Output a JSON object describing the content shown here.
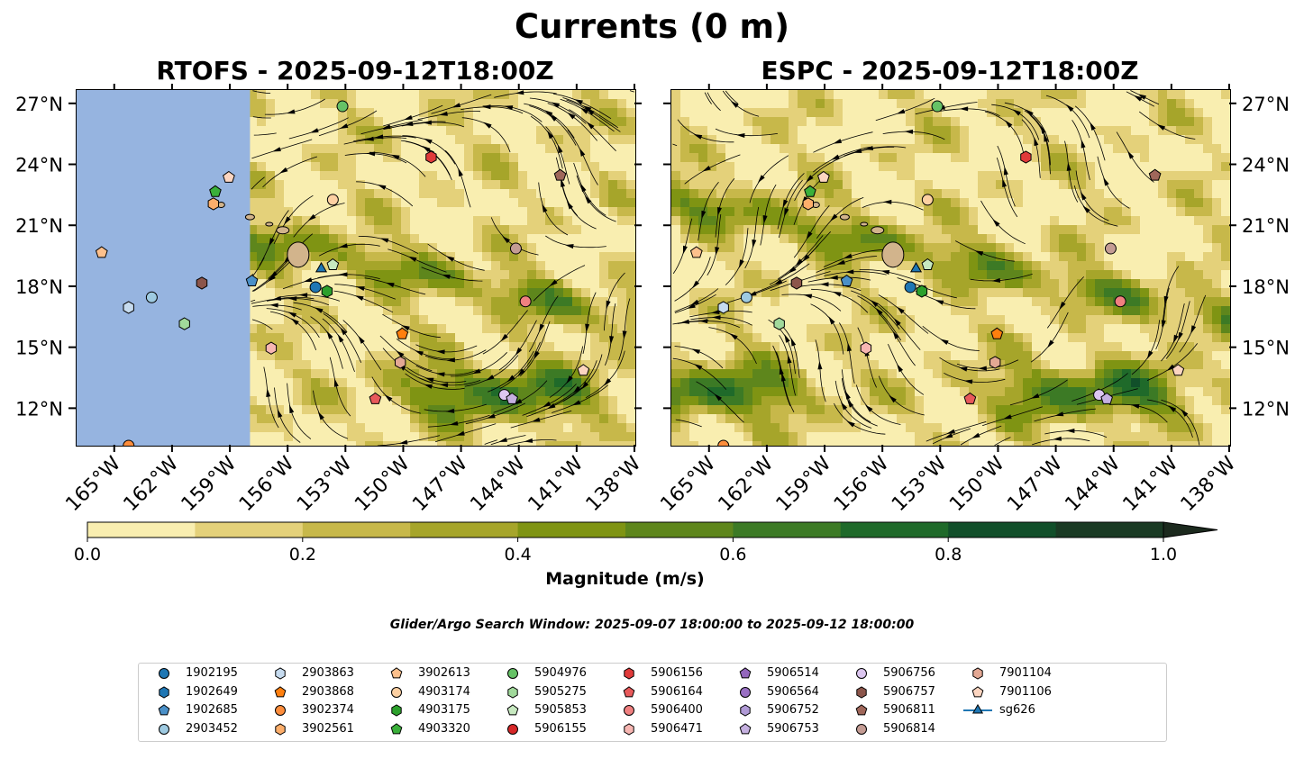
{
  "title": "Currents (0 m)",
  "panels": [
    {
      "id": "rtofs",
      "title": "RTOFS - 2025-09-12T18:00Z"
    },
    {
      "id": "espc",
      "title": "ESPC - 2025-09-12T18:00Z"
    }
  ],
  "chart_data": {
    "type": "heatmap",
    "x_ticks": [
      "165°W",
      "162°W",
      "159°W",
      "156°W",
      "153°W",
      "150°W",
      "147°W",
      "144°W",
      "141°W",
      "138°W"
    ],
    "y_ticks": [
      "27°N",
      "24°N",
      "21°N",
      "18°N",
      "15°N",
      "12°N"
    ],
    "xlim": [
      -167,
      -138
    ],
    "ylim": [
      10.2,
      27.7
    ],
    "colorbar": {
      "label": "Magnitude (m/s)",
      "ticks": [
        "0.0",
        "0.2",
        "0.4",
        "0.6",
        "0.8",
        "1.0"
      ],
      "range": [
        0,
        1.0
      ],
      "levels": [
        0,
        0.1,
        0.2,
        0.3,
        0.4,
        0.5,
        0.6,
        0.7,
        0.8,
        0.9,
        1.0
      ],
      "colors": [
        "#f9eeb0",
        "#e4d17a",
        "#c7b84a",
        "#a6a52a",
        "#7f9413",
        "#5e861c",
        "#3c7a25",
        "#1f6a2a",
        "#114f2a",
        "#1a3a24",
        "#1c2a1e"
      ]
    },
    "rtofs_no_data_west_of": -158,
    "colors": {
      "land": "#d2b48c",
      "no_data": "#96b4e0"
    }
  },
  "search_window": "Glider/Argo Search Window: 2025-09-07 18:00:00 to 2025-09-12 18:00:00",
  "legend": [
    {
      "id": "1902195",
      "shape": "circle",
      "color": "#1f77b4"
    },
    {
      "id": "1902649",
      "shape": "hexagon",
      "color": "#1f77b4"
    },
    {
      "id": "1902685",
      "shape": "pentagon",
      "color": "#4a90c8"
    },
    {
      "id": "2903452",
      "shape": "circle",
      "color": "#9ecae1"
    },
    {
      "id": "2903863",
      "shape": "hexagon",
      "color": "#c6dbef"
    },
    {
      "id": "2903868",
      "shape": "pentagon",
      "color": "#ff7f0e"
    },
    {
      "id": "3902374",
      "shape": "circle",
      "color": "#fd8d3c"
    },
    {
      "id": "3902561",
      "shape": "hexagon",
      "color": "#fdae6b"
    },
    {
      "id": "3902613",
      "shape": "pentagon",
      "color": "#fdc08c"
    },
    {
      "id": "4903174",
      "shape": "circle",
      "color": "#fdd0a2"
    },
    {
      "id": "4903175",
      "shape": "hexagon",
      "color": "#2ca02c"
    },
    {
      "id": "4903320",
      "shape": "pentagon",
      "color": "#3ab03a"
    },
    {
      "id": "5904976",
      "shape": "circle",
      "color": "#66c266"
    },
    {
      "id": "5905275",
      "shape": "hexagon",
      "color": "#a1d99b"
    },
    {
      "id": "5905853",
      "shape": "pentagon",
      "color": "#c7e9c0"
    },
    {
      "id": "5906155",
      "shape": "circle",
      "color": "#d62728"
    },
    {
      "id": "5906156",
      "shape": "hexagon",
      "color": "#e03a3a"
    },
    {
      "id": "5906164",
      "shape": "pentagon",
      "color": "#e8595a"
    },
    {
      "id": "5906400",
      "shape": "circle",
      "color": "#f08080"
    },
    {
      "id": "5906471",
      "shape": "hexagon",
      "color": "#f7b6b2"
    },
    {
      "id": "5906514",
      "shape": "pentagon",
      "color": "#9467bd"
    },
    {
      "id": "5906564",
      "shape": "circle",
      "color": "#9a70c4"
    },
    {
      "id": "5906752",
      "shape": "hexagon",
      "color": "#b09ad6"
    },
    {
      "id": "5906753",
      "shape": "pentagon",
      "color": "#c5b0e0"
    },
    {
      "id": "5906756",
      "shape": "circle",
      "color": "#dcc6f0"
    },
    {
      "id": "5906757",
      "shape": "hexagon",
      "color": "#8c564b"
    },
    {
      "id": "5906811",
      "shape": "pentagon",
      "color": "#a0675a"
    },
    {
      "id": "5906814",
      "shape": "circle",
      "color": "#c49c94"
    },
    {
      "id": "7901104",
      "shape": "hexagon",
      "color": "#e3a894"
    },
    {
      "id": "7901106",
      "shape": "pentagon",
      "color": "#fcd5c0"
    },
    {
      "id": "sg626",
      "shape": "triangle",
      "color": "#1f77b4"
    }
  ],
  "markers": [
    {
      "id": "5904976",
      "lon": -153.2,
      "lat": 26.9
    },
    {
      "id": "5906156",
      "lon": -148.6,
      "lat": 24.4
    },
    {
      "id": "5906811",
      "lon": -141.9,
      "lat": 23.5
    },
    {
      "id": "4903174",
      "lon": -153.7,
      "lat": 22.3
    },
    {
      "id": "5906814",
      "lon": -144.2,
      "lat": 19.9
    },
    {
      "id": "sg626",
      "lon": -154.3,
      "lat": 18.9
    },
    {
      "id": "5905853",
      "lon": -153.7,
      "lat": 19.1
    },
    {
      "id": "1902685",
      "lon": -157.9,
      "lat": 18.3
    },
    {
      "id": "1902195",
      "lon": -154.6,
      "lat": 18.0
    },
    {
      "id": "4903175",
      "lon": -154.0,
      "lat": 17.8
    },
    {
      "id": "5906400",
      "lon": -143.7,
      "lat": 17.3
    },
    {
      "id": "2903868",
      "lon": -150.1,
      "lat": 15.7
    },
    {
      "id": "7901104",
      "lon": -150.2,
      "lat": 14.3
    },
    {
      "id": "5906471",
      "lon": -156.9,
      "lat": 15.0
    },
    {
      "id": "7901106",
      "lon": -140.7,
      "lat": 13.9
    },
    {
      "id": "5906164",
      "lon": -151.5,
      "lat": 12.5
    },
    {
      "id": "5906756",
      "lon": -144.8,
      "lat": 12.7
    },
    {
      "id": "5906753",
      "lon": -144.4,
      "lat": 12.5
    },
    {
      "id": "7901106",
      "lon": -159.1,
      "lat": 23.4
    },
    {
      "id": "4903320",
      "lon": -159.8,
      "lat": 22.7
    },
    {
      "id": "3902561",
      "lon": -159.9,
      "lat": 22.1
    },
    {
      "id": "3902613",
      "lon": -165.7,
      "lat": 19.7
    },
    {
      "id": "5906757",
      "lon": -160.5,
      "lat": 18.2
    },
    {
      "id": "2903452",
      "lon": -163.1,
      "lat": 17.5
    },
    {
      "id": "2903863",
      "lon": -164.3,
      "lat": 17.0
    },
    {
      "id": "5905275",
      "lon": -161.4,
      "lat": 16.2
    },
    {
      "id": "3902374",
      "lon": -164.3,
      "lat": 10.2
    }
  ]
}
